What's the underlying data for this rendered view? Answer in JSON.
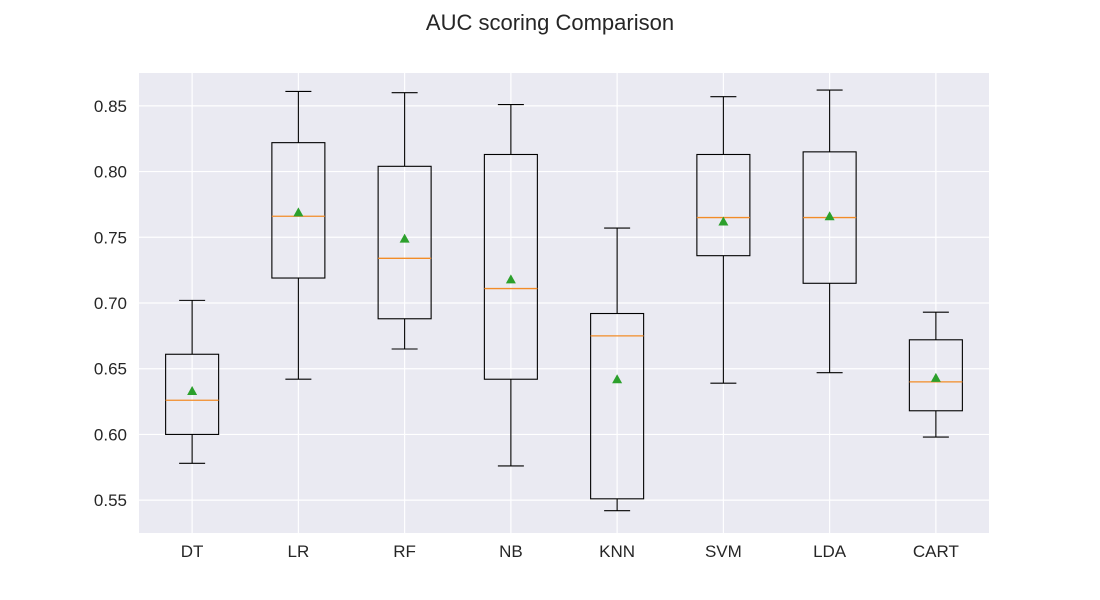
{
  "chart_data": {
    "type": "box",
    "title": "AUC scoring Comparison",
    "xlabel": "",
    "ylabel": "",
    "categories": [
      "DT",
      "LR",
      "RF",
      "NB",
      "KNN",
      "SVM",
      "LDA",
      "CART"
    ],
    "boxes": [
      {
        "name": "DT",
        "whisker_low": 0.578,
        "q1": 0.6,
        "median": 0.626,
        "q3": 0.661,
        "whisker_high": 0.702,
        "mean": 0.633
      },
      {
        "name": "LR",
        "whisker_low": 0.642,
        "q1": 0.719,
        "median": 0.766,
        "q3": 0.822,
        "whisker_high": 0.861,
        "mean": 0.769
      },
      {
        "name": "RF",
        "whisker_low": 0.665,
        "q1": 0.688,
        "median": 0.734,
        "q3": 0.804,
        "whisker_high": 0.86,
        "mean": 0.749
      },
      {
        "name": "NB",
        "whisker_low": 0.576,
        "q1": 0.642,
        "median": 0.711,
        "q3": 0.813,
        "whisker_high": 0.851,
        "mean": 0.718
      },
      {
        "name": "KNN",
        "whisker_low": 0.542,
        "q1": 0.551,
        "median": 0.675,
        "q3": 0.692,
        "whisker_high": 0.757,
        "mean": 0.642
      },
      {
        "name": "SVM",
        "whisker_low": 0.639,
        "q1": 0.736,
        "median": 0.765,
        "q3": 0.813,
        "whisker_high": 0.857,
        "mean": 0.762
      },
      {
        "name": "LDA",
        "whisker_low": 0.647,
        "q1": 0.715,
        "median": 0.765,
        "q3": 0.815,
        "whisker_high": 0.862,
        "mean": 0.766
      },
      {
        "name": "CART",
        "whisker_low": 0.598,
        "q1": 0.618,
        "median": 0.64,
        "q3": 0.672,
        "whisker_high": 0.693,
        "mean": 0.643
      }
    ],
    "ylim": [
      0.525,
      0.875
    ],
    "yticks": [
      0.55,
      0.6,
      0.65,
      0.7,
      0.75,
      0.8,
      0.85
    ],
    "ytick_labels": [
      "0.55",
      "0.60",
      "0.65",
      "0.70",
      "0.75",
      "0.80",
      "0.85"
    ],
    "grid": true,
    "colors": {
      "plot_background": "#eaeaf2",
      "grid": "#ffffff",
      "box": "#000000",
      "median": "#f28c28",
      "mean_marker": "#2ca02c",
      "text": "#262626"
    }
  }
}
